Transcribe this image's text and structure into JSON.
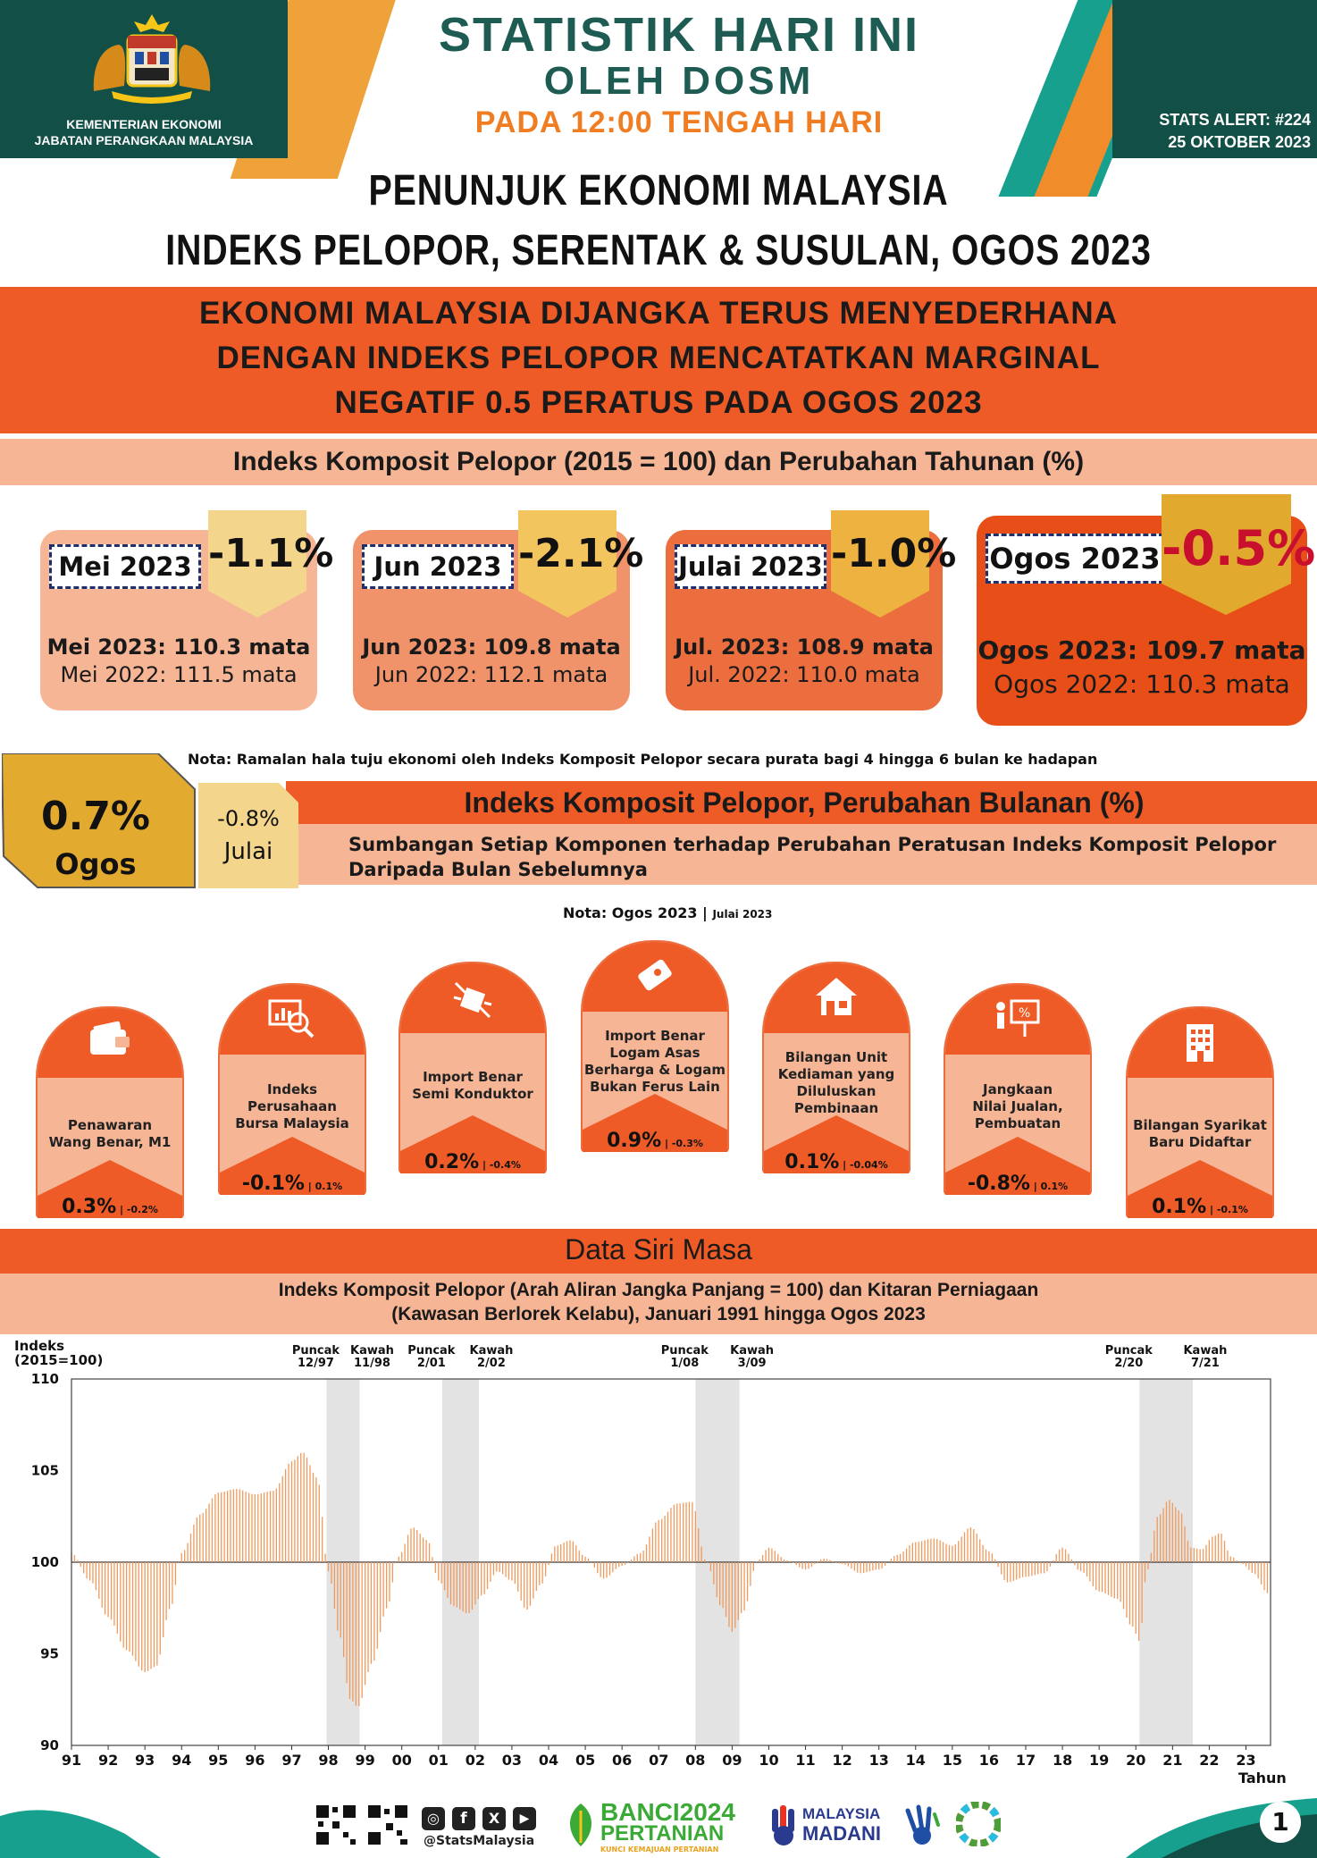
{
  "header": {
    "title_line1": "STATISTIK HARI INI",
    "title_line2": "OLEH DOSM",
    "subtitle": "PADA 12:00 TENGAH HARI",
    "ministry_line1": "KEMENTERIAN EKONOMI",
    "ministry_line2": "JABATAN PERANGKAAN MALAYSIA",
    "alert_line1": "STATS ALERT: #224",
    "alert_line2": "25 OKTOBER 2023"
  },
  "page_title": {
    "line1": "PENUNJUK EKONOMI MALAYSIA",
    "line2": "INDEKS PELOPOR, SERENTAK & SUSULAN, OGOS  2023"
  },
  "banner": {
    "line1": "EKONOMI MALAYSIA DIJANGKA TERUS MENYEDERHANA",
    "line2": "DENGAN INDEKS PELOPOR MENCATATKAN MARGINAL",
    "line3": "NEGATIF 0.5 PERATUS PADA OGOS 2023"
  },
  "annual_section": {
    "title": "Indeks Komposit Pelopor (2015 = 100) dan Perubahan Tahunan (%)",
    "cards": [
      {
        "month": "Mei 2023",
        "pct": "-1.1%",
        "line1": "Mei 2023: 110.3 mata",
        "line2": "Mei 2022: 111.5 mata"
      },
      {
        "month": "Jun 2023",
        "pct": "-2.1%",
        "line1": "Jun 2023: 109.8 mata",
        "line2": "Jun 2022: 112.1 mata"
      },
      {
        "month": "Julai 2023",
        "pct": "-1.0%",
        "line1": "Jul. 2023: 108.9 mata",
        "line2": "Jul. 2022: 110.0 mata"
      },
      {
        "month": "Ogos 2023",
        "pct": "-0.5%",
        "line1": "Ogos 2023: 109.7 mata",
        "line2": "Ogos 2022: 110.3 mata"
      }
    ],
    "note": "Nota: Ramalan hala tuju ekonomi oleh Indeks Komposit Pelopor secara purata bagi 4 hingga 6 bulan ke hadapan"
  },
  "monthly_section": {
    "current_value": "0.7%",
    "current_month": "Ogos",
    "prev_value": "-0.8%",
    "prev_month": "Julai",
    "title": "Indeks Komposit Pelopor, Perubahan Bulanan (%)",
    "subtitle_line1": "Sumbangan Setiap Komponen terhadap Perubahan Peratusan Indeks Komposit Pelopor",
    "subtitle_line2": "Daripada Bulan Sebelumnya",
    "note_main": "Nota: Ogos 2023",
    "note_small": "Julai 2023",
    "components": [
      {
        "label": [
          "Penawaran",
          "Wang Benar, M1"
        ],
        "value": "0.3%",
        "prev": "-0.2%",
        "icon": "wallet-icon"
      },
      {
        "label": [
          "Indeks",
          "Perusahaan",
          "Bursa Malaysia"
        ],
        "value": "-0.1%",
        "prev": "0.1%",
        "icon": "stock-analysis-icon"
      },
      {
        "label": [
          "Import Benar",
          "Semi Konduktor"
        ],
        "value": "0.2%",
        "prev": "-0.4%",
        "icon": "semiconductor-icon"
      },
      {
        "label": [
          "Import Benar",
          "Logam Asas",
          "Berharga & Logam",
          "Bukan Ferus Lain"
        ],
        "value": "0.9%",
        "prev": "-0.3%",
        "icon": "metal-bar-icon"
      },
      {
        "label": [
          "Bilangan Unit",
          "Kediaman yang",
          "Diluluskan",
          "Pembinaan"
        ],
        "value": "0.1%",
        "prev": "-0.04%",
        "icon": "house-icon"
      },
      {
        "label": [
          "Jangkaan",
          "Nilai Jualan,",
          "Pembuatan"
        ],
        "value": "-0.8%",
        "prev": "0.1%",
        "icon": "presentation-icon"
      },
      {
        "label": [
          "Bilangan Syarikat",
          "Baru Didaftar"
        ],
        "value": "0.1%",
        "prev": "-0.1%",
        "icon": "building-icon"
      }
    ]
  },
  "timeseries": {
    "title": "Data Siri Masa",
    "subtitle_line1": "Indeks Komposit Pelopor (Arah Aliran Jangka Panjang = 100) dan Kitaran Perniagaan",
    "subtitle_line2": "(Kawasan Berlorek Kelabu), Januari 1991 hingga Ogos 2023"
  },
  "chart_data": {
    "type": "bar",
    "title": "Indeks Komposit Pelopor (Arah Aliran Jangka Panjang = 100) dan Kitaran Perniagaan",
    "ylabel_line1": "Indeks",
    "ylabel_line2": "(2015=100)",
    "xlabel": "Tahun",
    "baseline": 100,
    "ylim": [
      90,
      110
    ],
    "y_ticks": [
      "110",
      "105",
      "100",
      "95",
      "90"
    ],
    "x_ticks": [
      "91",
      "92",
      "93",
      "94",
      "95",
      "96",
      "97",
      "98",
      "99",
      "00",
      "01",
      "02",
      "03",
      "04",
      "05",
      "06",
      "07",
      "08",
      "09",
      "10",
      "11",
      "12",
      "13",
      "14",
      "15",
      "16",
      "17",
      "18",
      "19",
      "20",
      "21",
      "22",
      "23"
    ],
    "x_start_year": 1991,
    "points": [
      [
        1991.0,
        100.5
      ],
      [
        1991.5,
        99.0
      ],
      [
        1992.0,
        97.0
      ],
      [
        1992.5,
        95.2
      ],
      [
        1993.0,
        94.0
      ],
      [
        1993.3,
        94.3
      ],
      [
        1993.7,
        97.5
      ],
      [
        1994.0,
        100.5
      ],
      [
        1994.5,
        102.6
      ],
      [
        1995.0,
        103.8
      ],
      [
        1995.5,
        104.0
      ],
      [
        1996.0,
        103.7
      ],
      [
        1996.5,
        103.9
      ],
      [
        1997.0,
        105.5
      ],
      [
        1997.3,
        106.0
      ],
      [
        1997.7,
        104.6
      ],
      [
        1998.0,
        99.5
      ],
      [
        1998.3,
        96.0
      ],
      [
        1998.6,
        92.5
      ],
      [
        1998.8,
        92.1
      ],
      [
        1999.2,
        94.5
      ],
      [
        1999.6,
        97.5
      ],
      [
        1999.9,
        100.3
      ],
      [
        2000.3,
        101.9
      ],
      [
        2000.7,
        101.2
      ],
      [
        2001.0,
        99.0
      ],
      [
        2001.4,
        97.6
      ],
      [
        2001.8,
        97.2
      ],
      [
        2002.2,
        98.2
      ],
      [
        2002.6,
        99.5
      ],
      [
        2003.0,
        99.0
      ],
      [
        2003.4,
        97.4
      ],
      [
        2003.8,
        98.8
      ],
      [
        2004.2,
        100.9
      ],
      [
        2004.6,
        101.2
      ],
      [
        2005.0,
        100.3
      ],
      [
        2005.5,
        99.1
      ],
      [
        2006.0,
        99.8
      ],
      [
        2006.5,
        100.5
      ],
      [
        2007.0,
        102.3
      ],
      [
        2007.5,
        103.2
      ],
      [
        2007.9,
        103.3
      ],
      [
        2008.3,
        100.0
      ],
      [
        2008.7,
        97.6
      ],
      [
        2009.0,
        96.2
      ],
      [
        2009.3,
        97.3
      ],
      [
        2009.7,
        100.1
      ],
      [
        2010.0,
        100.8
      ],
      [
        2010.5,
        100.1
      ],
      [
        2011.0,
        99.6
      ],
      [
        2011.5,
        100.2
      ],
      [
        2012.0,
        99.9
      ],
      [
        2012.5,
        99.4
      ],
      [
        2013.0,
        99.6
      ],
      [
        2013.5,
        100.4
      ],
      [
        2014.0,
        101.1
      ],
      [
        2014.5,
        101.3
      ],
      [
        2015.0,
        100.9
      ],
      [
        2015.5,
        101.9
      ],
      [
        2016.0,
        100.6
      ],
      [
        2016.5,
        98.9
      ],
      [
        2017.0,
        99.2
      ],
      [
        2017.5,
        99.4
      ],
      [
        2018.0,
        100.8
      ],
      [
        2018.5,
        99.5
      ],
      [
        2019.0,
        98.4
      ],
      [
        2019.5,
        98.0
      ],
      [
        2019.9,
        96.5
      ],
      [
        2020.1,
        95.7
      ],
      [
        2020.3,
        99.5
      ],
      [
        2020.6,
        102.5
      ],
      [
        2020.9,
        103.4
      ],
      [
        2021.2,
        102.8
      ],
      [
        2021.5,
        100.8
      ],
      [
        2021.8,
        100.7
      ],
      [
        2022.1,
        101.4
      ],
      [
        2022.3,
        101.6
      ],
      [
        2022.6,
        100.3
      ],
      [
        2022.9,
        99.9
      ],
      [
        2023.2,
        99.4
      ],
      [
        2023.6,
        98.3
      ]
    ],
    "shaded_periods": [
      {
        "start": 1997.95,
        "end": 1998.85,
        "peak": "Puncak\n12/97",
        "trough": "Kawah\n11/98"
      },
      {
        "start": 2001.1,
        "end": 2002.1,
        "peak": "Puncak\n2/01",
        "trough": "Kawah\n2/02"
      },
      {
        "start": 2008.0,
        "end": 2009.2,
        "peak": "Puncak\n1/08",
        "trough": "Kawah\n3/09"
      },
      {
        "start": 2020.1,
        "end": 2021.55,
        "peak": "Puncak\n2/20",
        "trough": "Kawah\n7/21"
      }
    ]
  },
  "footer": {
    "handle": "@StatsMalaysia",
    "banci_line1": "BANCI2024",
    "banci_line2": "PERTANIAN",
    "banci_tag": "KUNCI KEMAJUAN PERTANIAN",
    "madani_line1": "MALAYSIA",
    "madani_line2": "MADANI",
    "page_number": "1"
  }
}
